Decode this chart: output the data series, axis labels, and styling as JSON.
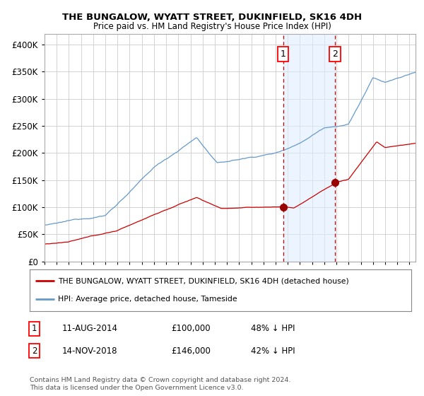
{
  "title": "THE BUNGALOW, WYATT STREET, DUKINFIELD, SK16 4DH",
  "subtitle": "Price paid vs. HM Land Registry's House Price Index (HPI)",
  "legend_label_red": "THE BUNGALOW, WYATT STREET, DUKINFIELD, SK16 4DH (detached house)",
  "legend_label_blue": "HPI: Average price, detached house, Tameside",
  "annotation1_label": "1",
  "annotation1_date": "11-AUG-2014",
  "annotation1_price": "£100,000",
  "annotation1_hpi": "48% ↓ HPI",
  "annotation2_label": "2",
  "annotation2_date": "14-NOV-2018",
  "annotation2_price": "£146,000",
  "annotation2_hpi": "42% ↓ HPI",
  "footer": "Contains HM Land Registry data © Crown copyright and database right 2024.\nThis data is licensed under the Open Government Licence v3.0.",
  "red_color": "#cc0000",
  "blue_color": "#6699cc",
  "blue_fill": "#ddeeff",
  "vline_color": "#cc0000",
  "marker_color": "#990000",
  "grid_color": "#cccccc",
  "bg_color": "#ffffff",
  "ylim": [
    0,
    420000
  ],
  "yticks": [
    0,
    50000,
    100000,
    150000,
    200000,
    250000,
    300000,
    350000,
    400000
  ],
  "xlim_start": 1995.0,
  "xlim_end": 2025.5,
  "event1_x": 2014.608,
  "event2_x": 2018.872,
  "event1_y_red": 100000,
  "event2_y_red": 146000
}
